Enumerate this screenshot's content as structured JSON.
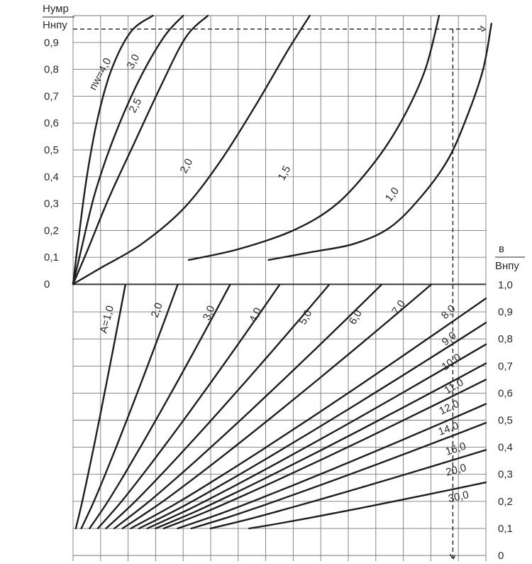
{
  "chart_data": [
    {
      "type": "line",
      "panel": "upper",
      "title": "",
      "ylabel_numerator": "Нумр",
      "ylabel_denominator": "Ннпу",
      "y_ticks": [
        "0",
        "0,1",
        "0,2",
        "0,3",
        "0,4",
        "0,5",
        "0,6",
        "0,7",
        "0,8",
        "0,9"
      ],
      "ylim": [
        0,
        1.0
      ],
      "xlim": [
        0,
        15
      ],
      "grid": true,
      "series": [
        {
          "name": "nw=4,0",
          "label": "nw=4,0",
          "points": [
            [
              0,
              0
            ],
            [
              0.2,
              0.17
            ],
            [
              0.5,
              0.4
            ],
            [
              0.9,
              0.62
            ],
            [
              1.4,
              0.8
            ],
            [
              2.1,
              0.94
            ],
            [
              2.9,
              1.0
            ]
          ]
        },
        {
          "name": "3,0",
          "label": "3,0",
          "points": [
            [
              0,
              0
            ],
            [
              0.3,
              0.13
            ],
            [
              0.8,
              0.34
            ],
            [
              1.5,
              0.55
            ],
            [
              2.4,
              0.76
            ],
            [
              3.3,
              0.92
            ],
            [
              4.0,
              1.0
            ]
          ]
        },
        {
          "name": "2,5",
          "label": "2,5",
          "points": [
            [
              0,
              0
            ],
            [
              0.5,
              0.12
            ],
            [
              1.3,
              0.32
            ],
            [
              2.2,
              0.52
            ],
            [
              3.2,
              0.74
            ],
            [
              4.1,
              0.92
            ],
            [
              4.9,
              1.0
            ]
          ]
        },
        {
          "name": "2,0",
          "label": "2,0",
          "points": [
            [
              0,
              0
            ],
            [
              1.0,
              0.06
            ],
            [
              2.5,
              0.15
            ],
            [
              4.0,
              0.28
            ],
            [
              5.3,
              0.45
            ],
            [
              6.6,
              0.66
            ],
            [
              7.8,
              0.87
            ],
            [
              8.6,
              1.0
            ]
          ]
        },
        {
          "name": "1,5",
          "label": "1,5",
          "points": [
            [
              4.2,
              0.09
            ],
            [
              6.0,
              0.13
            ],
            [
              8.0,
              0.2
            ],
            [
              9.6,
              0.3
            ],
            [
              11.0,
              0.46
            ],
            [
              12.0,
              0.62
            ],
            [
              12.8,
              0.8
            ],
            [
              13.3,
              1.0
            ]
          ]
        },
        {
          "name": "1,0",
          "label": "1,0",
          "points": [
            [
              7.1,
              0.09
            ],
            [
              8.7,
              0.12
            ],
            [
              10.2,
              0.15
            ],
            [
              11.5,
              0.21
            ],
            [
              12.6,
              0.32
            ],
            [
              13.6,
              0.46
            ],
            [
              14.3,
              0.62
            ],
            [
              14.9,
              0.8
            ],
            [
              15.2,
              0.97
            ]
          ]
        }
      ],
      "reference_line": {
        "y": 0.95
      }
    },
    {
      "type": "line",
      "panel": "lower",
      "title": "",
      "ylabel_numerator": "в",
      "ylabel_denominator": "Bнпу",
      "y_ticks": [
        "0",
        "0,1",
        "0,2",
        "0,3",
        "0,4",
        "0,5",
        "0,6",
        "0,7",
        "0,8",
        "0,9",
        "1,0"
      ],
      "ylim": [
        0,
        1.0
      ],
      "xlim": [
        0,
        15
      ],
      "grid": true,
      "series": [
        {
          "name": "A=1,0",
          "label": "A=1,0",
          "x_end": 1.9,
          "y_end": 1.0
        },
        {
          "name": "2,0",
          "label": "2,0",
          "x_end": 3.8,
          "y_end": 1.0
        },
        {
          "name": "3,0",
          "label": "3,0",
          "x_end": 5.7,
          "y_end": 1.0
        },
        {
          "name": "4,0",
          "label": "4,0",
          "x_end": 7.5,
          "y_end": 1.0
        },
        {
          "name": "5,0",
          "label": "5,0",
          "x_end": 9.3,
          "y_end": 1.0
        },
        {
          "name": "6,0",
          "label": "6,0",
          "x_end": 11.2,
          "y_end": 1.0
        },
        {
          "name": "7,0",
          "label": "7,0",
          "x_end": 13.0,
          "y_end": 1.0
        },
        {
          "name": "8,0",
          "label": "8,0",
          "x_end": 15.0,
          "y_end": 0.95
        },
        {
          "name": "9,0",
          "label": "9,0",
          "x_end": 15.0,
          "y_end": 0.86
        },
        {
          "name": "10,0",
          "label": "10,0",
          "x_end": 15.0,
          "y_end": 0.78
        },
        {
          "name": "11,0",
          "label": "11,0",
          "x_end": 15.0,
          "y_end": 0.71
        },
        {
          "name": "12,0",
          "label": "12,0",
          "x_end": 15.0,
          "y_end": 0.65
        },
        {
          "name": "14,0",
          "label": "14,0",
          "x_end": 15.0,
          "y_end": 0.56
        },
        {
          "name": "16,0",
          "label": "16,0",
          "x_end": 15.0,
          "y_end": 0.49
        },
        {
          "name": "20,0",
          "label": "20,0",
          "x_end": 15.0,
          "y_end": 0.39
        },
        {
          "name": "30,0",
          "label": "30,0",
          "x_end": 15.0,
          "y_end": 0.27
        }
      ],
      "reference_line": {
        "x": 13.8
      }
    }
  ],
  "colors": {
    "background": "#ffffff",
    "grid": "#7a7a7a",
    "curve": "#1e1e1e",
    "text": "#2a2a2a"
  }
}
